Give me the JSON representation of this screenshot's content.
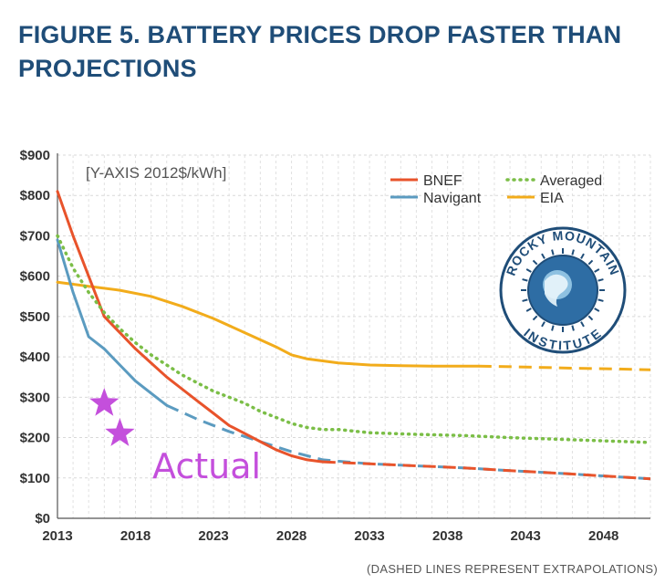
{
  "title_lines": [
    "FIGURE 5. BATTERY PRICES DROP FASTER THAN",
    "PROJECTIONS"
  ],
  "footnote": "(DASHED LINES REPRESENT EXTRAPOLATIONS)",
  "logo": {
    "text_top": "ROCKY MOUNTAIN",
    "text_bottom": "INSTITUTE"
  },
  "chart_data": {
    "type": "line",
    "ylabel": "[Y-AXIS 2012$/kWh]",
    "xlim": [
      2013,
      2051
    ],
    "ylim": [
      0,
      900
    ],
    "x_ticks": [
      2013,
      2018,
      2023,
      2028,
      2033,
      2038,
      2043,
      2048
    ],
    "x_tick_labels": [
      "2013",
      "2018",
      "2023",
      "2028",
      "2033",
      "2038",
      "2043",
      "2048"
    ],
    "y_ticks": [
      0,
      100,
      200,
      300,
      400,
      500,
      600,
      700,
      800,
      900
    ],
    "y_tick_labels": [
      "$0",
      "$100",
      "$200",
      "$300",
      "$400",
      "$500",
      "$600",
      "$700",
      "$800",
      "$900"
    ],
    "grid": true,
    "legend_position": "top-right",
    "series": [
      {
        "name": "BNEF",
        "color": "#e8532b",
        "style": "solid",
        "x": [
          2013,
          2014,
          2015,
          2016,
          2017,
          2018,
          2019,
          2020,
          2021,
          2022,
          2023,
          2024,
          2025,
          2026,
          2027,
          2028,
          2029,
          2030
        ],
        "y": [
          810,
          700,
          600,
          500,
          460,
          420,
          385,
          350,
          320,
          290,
          260,
          230,
          210,
          190,
          170,
          155,
          145,
          140
        ],
        "extrapolation": {
          "x": [
            2030,
            2033,
            2036,
            2039,
            2042,
            2045,
            2048,
            2051
          ],
          "y": [
            140,
            135,
            130,
            125,
            118,
            112,
            105,
            98
          ]
        }
      },
      {
        "name": "Navigant",
        "color": "#5b9bc0",
        "style": "solid",
        "x": [
          2013,
          2014,
          2015,
          2016,
          2017,
          2018,
          2019,
          2020
        ],
        "y": [
          690,
          560,
          450,
          420,
          380,
          340,
          310,
          280
        ],
        "extrapolation": {
          "x": [
            2020,
            2022,
            2024,
            2026,
            2028,
            2030,
            2033,
            2036,
            2039,
            2042,
            2045,
            2048,
            2051
          ],
          "y": [
            280,
            245,
            215,
            190,
            165,
            145,
            135,
            130,
            125,
            118,
            112,
            105,
            98
          ]
        }
      },
      {
        "name": "Averaged",
        "color": "#7bbe47",
        "style": "dotted",
        "x": [
          2013,
          2014,
          2015,
          2016,
          2017,
          2018,
          2019,
          2020,
          2021,
          2022,
          2023,
          2024,
          2025,
          2026,
          2027,
          2028,
          2029,
          2030,
          2031,
          2033,
          2036,
          2039,
          2042,
          2045,
          2048,
          2051
        ],
        "y": [
          700,
          620,
          560,
          510,
          470,
          435,
          405,
          380,
          355,
          335,
          315,
          300,
          285,
          265,
          250,
          235,
          225,
          220,
          220,
          212,
          208,
          205,
          200,
          196,
          192,
          188
        ]
      },
      {
        "name": "EIA",
        "color": "#f2ac1b",
        "style": "solid",
        "x": [
          2013,
          2015,
          2017,
          2019,
          2021,
          2023,
          2025,
          2027,
          2028,
          2029,
          2031,
          2033,
          2035,
          2037,
          2040
        ],
        "y": [
          585,
          575,
          565,
          550,
          525,
          495,
          460,
          425,
          405,
          395,
          385,
          380,
          378,
          377,
          377
        ],
        "extrapolation": {
          "x": [
            2040,
            2043,
            2046,
            2049,
            2051
          ],
          "y": [
            377,
            375,
            372,
            370,
            368
          ]
        }
      }
    ],
    "annotations": [
      {
        "type": "star",
        "label": "Actual",
        "color": "#c44fdc",
        "points": [
          {
            "x": 2016,
            "y": 285
          },
          {
            "x": 2017,
            "y": 210
          }
        ]
      }
    ]
  }
}
